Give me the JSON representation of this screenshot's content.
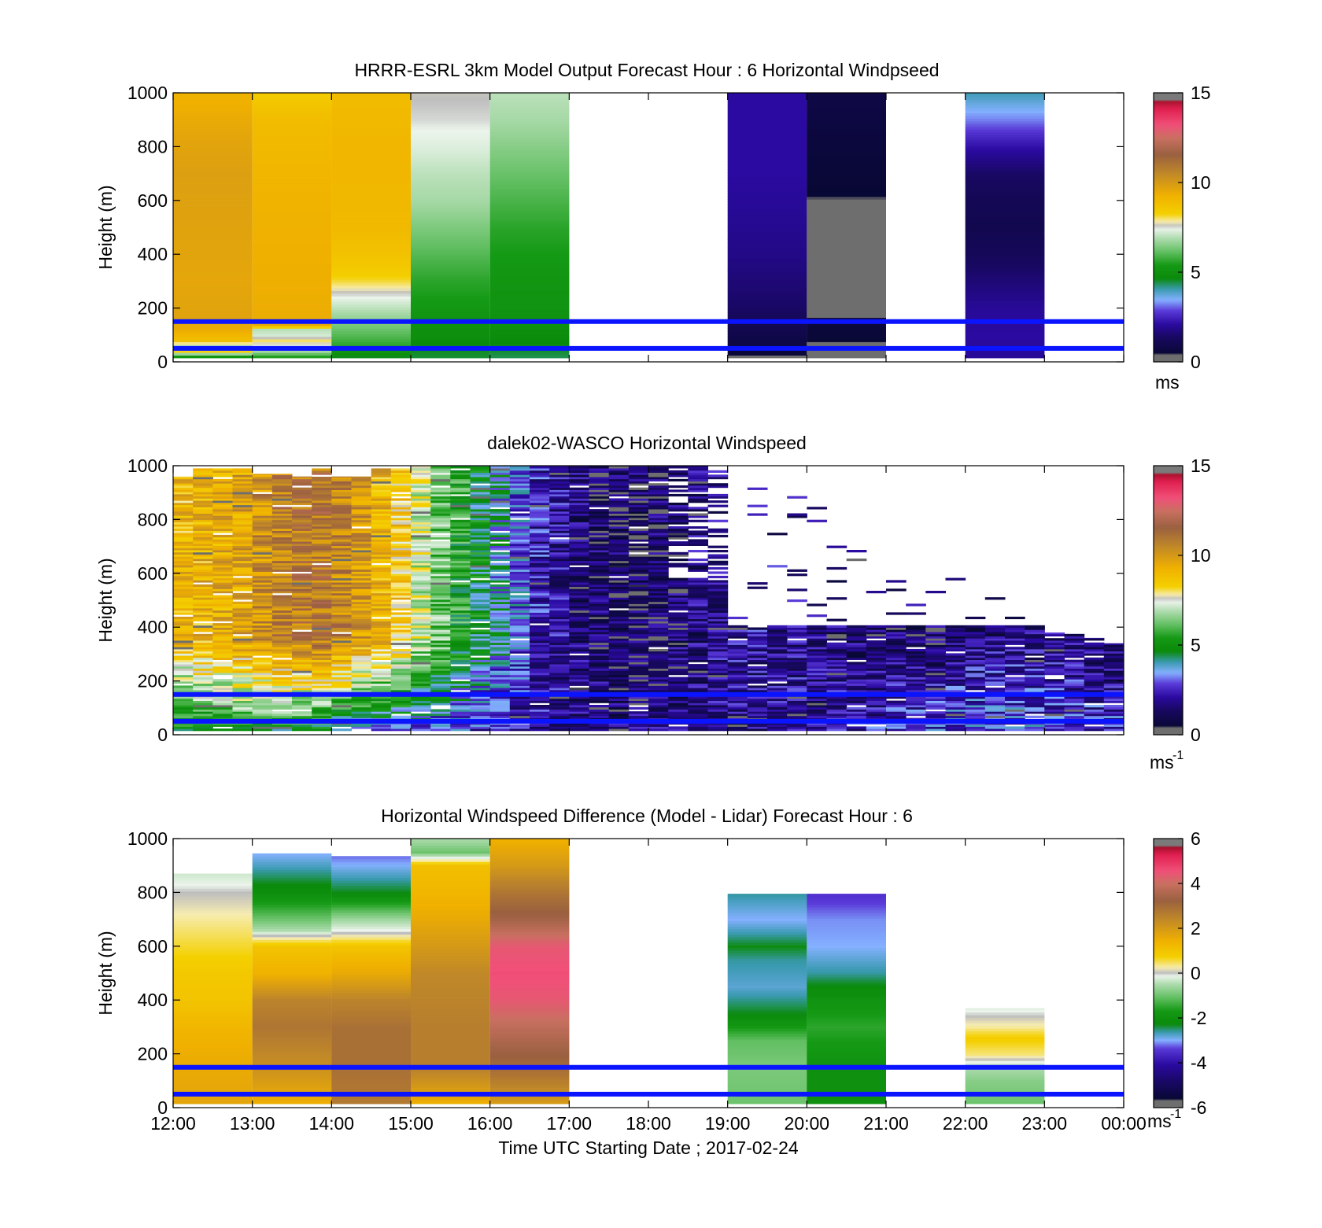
{
  "chart_data": [
    {
      "type": "heatmap",
      "title": "HRRR-ESRL 3km Model Output   Forecast Hour : 6 Horizontal Windpseed",
      "ylabel": "Height (m)",
      "ylim": [
        0,
        1000
      ],
      "y_ticks": [
        "0",
        "200",
        "400",
        "600",
        "800",
        "1000"
      ],
      "x_ticks": [
        "12:00",
        "13:00",
        "14:00",
        "15:00",
        "16:00",
        "17:00",
        "18:00",
        "19:00",
        "20:00",
        "21:00",
        "22:00",
        "23:00",
        "00:00"
      ],
      "x_tick_labels_shown": false,
      "colorbar": {
        "range": [
          0,
          15
        ],
        "ticks": [
          "0",
          "5",
          "10",
          "15"
        ],
        "unit": "ms",
        "colormap": "wind"
      },
      "reference_lines_m": [
        50,
        150
      ],
      "cells": [
        {
          "x0": 0,
          "x1": 1,
          "profile": [
            [
              20,
              5.2
            ],
            [
              40,
              8.2
            ],
            [
              60,
              7.0
            ],
            [
              80,
              8.8
            ],
            [
              100,
              9.1
            ],
            [
              120,
              9.4
            ],
            [
              140,
              9.6
            ],
            [
              160,
              9.7
            ],
            [
              300,
              9.6
            ],
            [
              500,
              9.7
            ],
            [
              700,
              9.8
            ],
            [
              850,
              9.6
            ],
            [
              1000,
              9.2
            ]
          ]
        },
        {
          "x0": 1,
          "x1": 2,
          "profile": [
            [
              20,
              5.5
            ],
            [
              40,
              6.8
            ],
            [
              60,
              7.4
            ],
            [
              80,
              8.0
            ],
            [
              100,
              7.2
            ],
            [
              120,
              7.0
            ],
            [
              140,
              9.6
            ],
            [
              160,
              9.4
            ],
            [
              400,
              9.3
            ],
            [
              600,
              9.2
            ],
            [
              800,
              9.0
            ],
            [
              900,
              8.9
            ],
            [
              1000,
              8.4
            ]
          ]
        },
        {
          "x0": 2,
          "x1": 3,
          "profile": [
            [
              20,
              4.6
            ],
            [
              60,
              5.6
            ],
            [
              100,
              6.0
            ],
            [
              150,
              6.5
            ],
            [
              200,
              7.0
            ],
            [
              250,
              7.5
            ],
            [
              300,
              8.1
            ],
            [
              350,
              8.5
            ],
            [
              400,
              8.7
            ],
            [
              500,
              9.0
            ],
            [
              800,
              9.1
            ],
            [
              1000,
              8.9
            ]
          ]
        },
        {
          "x0": 3,
          "x1": 4,
          "profile": [
            [
              20,
              4.5
            ],
            [
              60,
              4.6
            ],
            [
              100,
              4.9
            ],
            [
              150,
              5.0
            ],
            [
              200,
              5.3
            ],
            [
              300,
              5.6
            ],
            [
              400,
              6.0
            ],
            [
              500,
              6.4
            ],
            [
              600,
              6.8
            ],
            [
              700,
              7.0
            ],
            [
              800,
              7.3
            ],
            [
              900,
              7.5
            ],
            [
              1000,
              7.6
            ]
          ]
        },
        {
          "x0": 4,
          "x1": 5,
          "profile": [
            [
              20,
              4.4
            ],
            [
              60,
              4.6
            ],
            [
              100,
              4.8
            ],
            [
              150,
              5.0
            ],
            [
              200,
              5.1
            ],
            [
              300,
              5.2
            ],
            [
              400,
              5.4
            ],
            [
              500,
              5.6
            ],
            [
              600,
              5.9
            ],
            [
              700,
              6.2
            ],
            [
              800,
              6.5
            ],
            [
              900,
              6.8
            ],
            [
              1000,
              7.0
            ]
          ]
        },
        {
          "x0": 7,
          "x1": 8,
          "profile": [
            [
              20,
              0.4
            ],
            [
              60,
              0.7
            ],
            [
              100,
              0.9
            ],
            [
              150,
              1.1
            ],
            [
              200,
              1.4
            ],
            [
              300,
              1.6
            ],
            [
              400,
              1.8
            ],
            [
              500,
              1.9
            ],
            [
              600,
              2.0
            ],
            [
              700,
              2.1
            ],
            [
              800,
              2.1
            ],
            [
              900,
              2.1
            ],
            [
              1000,
              2.1
            ]
          ]
        },
        {
          "x0": 8,
          "x1": 9,
          "profile": [
            [
              20,
              0.2
            ],
            [
              60,
              0.35
            ],
            [
              100,
              0.5
            ],
            [
              150,
              0.6
            ],
            [
              200,
              0.1
            ],
            [
              300,
              0.1
            ],
            [
              400,
              0.1
            ],
            [
              500,
              0.35
            ],
            [
              600,
              0.4
            ],
            [
              700,
              0.5
            ],
            [
              800,
              0.6
            ],
            [
              900,
              0.7
            ],
            [
              1000,
              0.8
            ]
          ]
        },
        {
          "x0": 10,
          "x1": 11,
          "profile": [
            [
              20,
              2.0
            ],
            [
              100,
              2.1
            ],
            [
              200,
              2.0
            ],
            [
              300,
              1.6
            ],
            [
              400,
              1.2
            ],
            [
              500,
              1.0
            ],
            [
              600,
              1.1
            ],
            [
              700,
              1.4
            ],
            [
              800,
              2.2
            ],
            [
              900,
              3.2
            ],
            [
              1000,
              4.0
            ]
          ]
        }
      ]
    },
    {
      "type": "heatmap",
      "title": "dalek02-WASCO  Horizontal Windspeed",
      "ylabel": "Height (m)",
      "ylim": [
        0,
        1000
      ],
      "y_ticks": [
        "0",
        "200",
        "400",
        "600",
        "800",
        "1000"
      ],
      "x_ticks": [
        "12:00",
        "13:00",
        "14:00",
        "15:00",
        "16:00",
        "17:00",
        "18:00",
        "19:00",
        "20:00",
        "21:00",
        "22:00",
        "23:00",
        "00:00"
      ],
      "x_tick_labels_shown": false,
      "colorbar": {
        "range": [
          0,
          15
        ],
        "ticks": [
          "0",
          "5",
          "10",
          "15"
        ],
        "unit": "ms",
        "unit_exponent": "-1",
        "colormap": "wind"
      },
      "reference_lines_m": [
        50,
        150
      ],
      "columns_per_hour": 4,
      "column_top_m": [
        960,
        990,
        990,
        990,
        970,
        970,
        960,
        990,
        960,
        960,
        990,
        990,
        1000,
        1000,
        1000,
        1000,
        1000,
        1000,
        1000,
        1000,
        1000,
        1000,
        1000,
        1000,
        1000,
        1000,
        1000,
        1000,
        960,
        940,
        920,
        900,
        880,
        830,
        780,
        740,
        700,
        650,
        620,
        590,
        560,
        520,
        480,
        420,
        380,
        380,
        360,
        340
      ],
      "column_speed": [
        9.0,
        9.2,
        9.4,
        9.6,
        10.2,
        10.6,
        10.8,
        10.9,
        10.5,
        9.9,
        9.2,
        8.5,
        7.2,
        6.2,
        5.4,
        4.6,
        3.8,
        3.1,
        2.4,
        2.0,
        1.5,
        1.3,
        1.2,
        1.2,
        1.3,
        1.5,
        1.7,
        1.9,
        2.0,
        2.0,
        1.9,
        1.8,
        1.7,
        1.6,
        1.5,
        1.4,
        1.4,
        1.3,
        1.4,
        1.5,
        1.6,
        1.7,
        1.8,
        1.8,
        1.7,
        1.6,
        1.5,
        1.5
      ],
      "surface_speed": [
        4.5,
        4.8,
        5.0,
        5.2,
        5.0,
        4.8,
        4.5,
        4.2,
        3.8,
        3.4,
        3.2,
        3.0,
        2.9,
        2.7,
        2.5,
        2.3,
        2.2,
        2.0,
        1.9,
        1.8,
        1.7,
        1.7,
        1.6,
        1.6,
        1.6,
        1.6,
        1.7,
        1.7,
        1.8,
        1.8,
        1.9,
        2.0,
        2.1,
        2.2,
        2.3,
        2.4,
        2.6,
        2.8,
        3.0,
        3.1,
        3.2,
        3.2,
        3.1,
        3.0,
        2.9,
        2.8,
        2.7,
        2.6
      ]
    },
    {
      "type": "heatmap",
      "title": "Horizontal Windspeed Difference (Model - Lidar) Forecast Hour : 6",
      "xlabel": "Time UTC  Starting Date ; 2017-02-24",
      "ylabel": "Height (m)",
      "ylim": [
        0,
        1000
      ],
      "y_ticks": [
        "0",
        "200",
        "400",
        "600",
        "800",
        "1000"
      ],
      "x_ticks": [
        "12:00",
        "13:00",
        "14:00",
        "15:00",
        "16:00",
        "17:00",
        "18:00",
        "19:00",
        "20:00",
        "21:00",
        "22:00",
        "23:00",
        "00:00"
      ],
      "x_tick_labels_shown": true,
      "colorbar": {
        "range": [
          -6,
          6
        ],
        "ticks": [
          "-6",
          "-4",
          "-2",
          "0",
          "2",
          "4",
          "6"
        ],
        "unit": "ms",
        "unit_exponent": "-1",
        "colormap": "diff"
      },
      "reference_lines_m": [
        50,
        150
      ],
      "cells": [
        {
          "x0": 0,
          "x1": 1,
          "top": 870,
          "profile": [
            [
              20,
              1.7
            ],
            [
              200,
              1.5
            ],
            [
              300,
              1.3
            ],
            [
              400,
              1.0
            ],
            [
              500,
              0.9
            ],
            [
              600,
              0.6
            ],
            [
              700,
              0.3
            ],
            [
              800,
              0.0
            ],
            [
              870,
              -0.3
            ]
          ]
        },
        {
          "x0": 1,
          "x1": 2,
          "top": 945,
          "profile": [
            [
              20,
              1.5
            ],
            [
              150,
              2.2
            ],
            [
              300,
              2.8
            ],
            [
              400,
              2.5
            ],
            [
              500,
              1.4
            ],
            [
              600,
              1.0
            ],
            [
              660,
              -0.5
            ],
            [
              700,
              -1.0
            ],
            [
              800,
              -2.1
            ],
            [
              945,
              -3.0
            ]
          ]
        },
        {
          "x0": 2,
          "x1": 3,
          "top": 935,
          "profile": [
            [
              20,
              2.7
            ],
            [
              150,
              2.9
            ],
            [
              300,
              2.9
            ],
            [
              400,
              2.5
            ],
            [
              500,
              1.6
            ],
            [
              600,
              1.0
            ],
            [
              650,
              0.0
            ],
            [
              700,
              -0.6
            ],
            [
              800,
              -2.3
            ],
            [
              935,
              -3.2
            ]
          ]
        },
        {
          "x0": 3,
          "x1": 4,
          "top": 1000,
          "profile": [
            [
              20,
              1.5
            ],
            [
              150,
              2.6
            ],
            [
              300,
              2.6
            ],
            [
              500,
              2.4
            ],
            [
              700,
              1.6
            ],
            [
              800,
              1.3
            ],
            [
              900,
              1.1
            ],
            [
              950,
              -1.0
            ],
            [
              1000,
              -0.5
            ]
          ]
        },
        {
          "x0": 4,
          "x1": 5,
          "top": 1000,
          "profile": [
            [
              20,
              2.0
            ],
            [
              150,
              3.0
            ],
            [
              300,
              3.8
            ],
            [
              400,
              4.4
            ],
            [
              500,
              4.6
            ],
            [
              600,
              4.4
            ],
            [
              700,
              3.4
            ],
            [
              800,
              2.8
            ],
            [
              900,
              2.0
            ],
            [
              1000,
              1.4
            ]
          ]
        },
        {
          "x0": 7,
          "x1": 8,
          "top": 795,
          "profile": [
            [
              20,
              -1.0
            ],
            [
              150,
              -0.9
            ],
            [
              250,
              -1.1
            ],
            [
              350,
              -2.3
            ],
            [
              450,
              -2.8
            ],
            [
              550,
              -2.6
            ],
            [
              600,
              -2.3
            ],
            [
              700,
              -3.0
            ],
            [
              795,
              -2.6
            ]
          ]
        },
        {
          "x0": 8,
          "x1": 9,
          "top": 795,
          "profile": [
            [
              20,
              -2.0
            ],
            [
              150,
              -2.0
            ],
            [
              300,
              -1.5
            ],
            [
              400,
              -1.9
            ],
            [
              500,
              -2.6
            ],
            [
              600,
              -3.0
            ],
            [
              700,
              -3.1
            ],
            [
              795,
              -3.5
            ]
          ]
        },
        {
          "x0": 10,
          "x1": 11,
          "top": 370,
          "profile": [
            [
              20,
              -1.0
            ],
            [
              100,
              -0.8
            ],
            [
              150,
              -0.5
            ],
            [
              200,
              0.4
            ],
            [
              260,
              0.8
            ],
            [
              300,
              0.3
            ],
            [
              370,
              -0.2
            ]
          ]
        }
      ]
    }
  ]
}
